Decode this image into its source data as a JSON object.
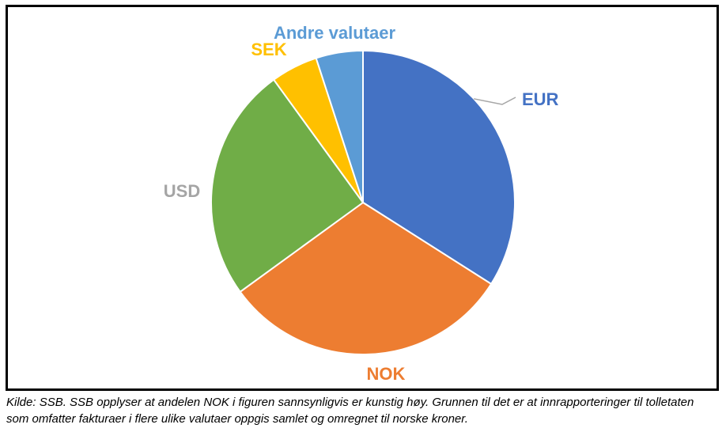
{
  "chart_data": {
    "type": "pie",
    "slices": [
      {
        "label": "EUR",
        "value": 34,
        "color": "#4472C4",
        "label_color": "#4472C4"
      },
      {
        "label": "NOK",
        "value": 31,
        "color": "#ED7D31",
        "label_color": "#ED7D31"
      },
      {
        "label": "USD",
        "value": 25,
        "color": "#70AD47",
        "label_color": "#A5A5A5"
      },
      {
        "label": "SEK",
        "value": 5,
        "color": "#FFC000",
        "label_color": "#FFC000"
      },
      {
        "label": "Andre valutaer",
        "value": 5,
        "color": "#5B9BD5",
        "label_color": "#5B9BD5"
      }
    ],
    "leader_line_color": "#A6A6A6"
  },
  "caption": "Kilde: SSB. SSB opplyser at andelen NOK i figuren sannsynligvis er kunstig høy. Grunnen til det er at innrapporteringer til tolletaten som omfatter fakturaer i flere ulike valutaer oppgis samlet og omregnet til norske kroner."
}
